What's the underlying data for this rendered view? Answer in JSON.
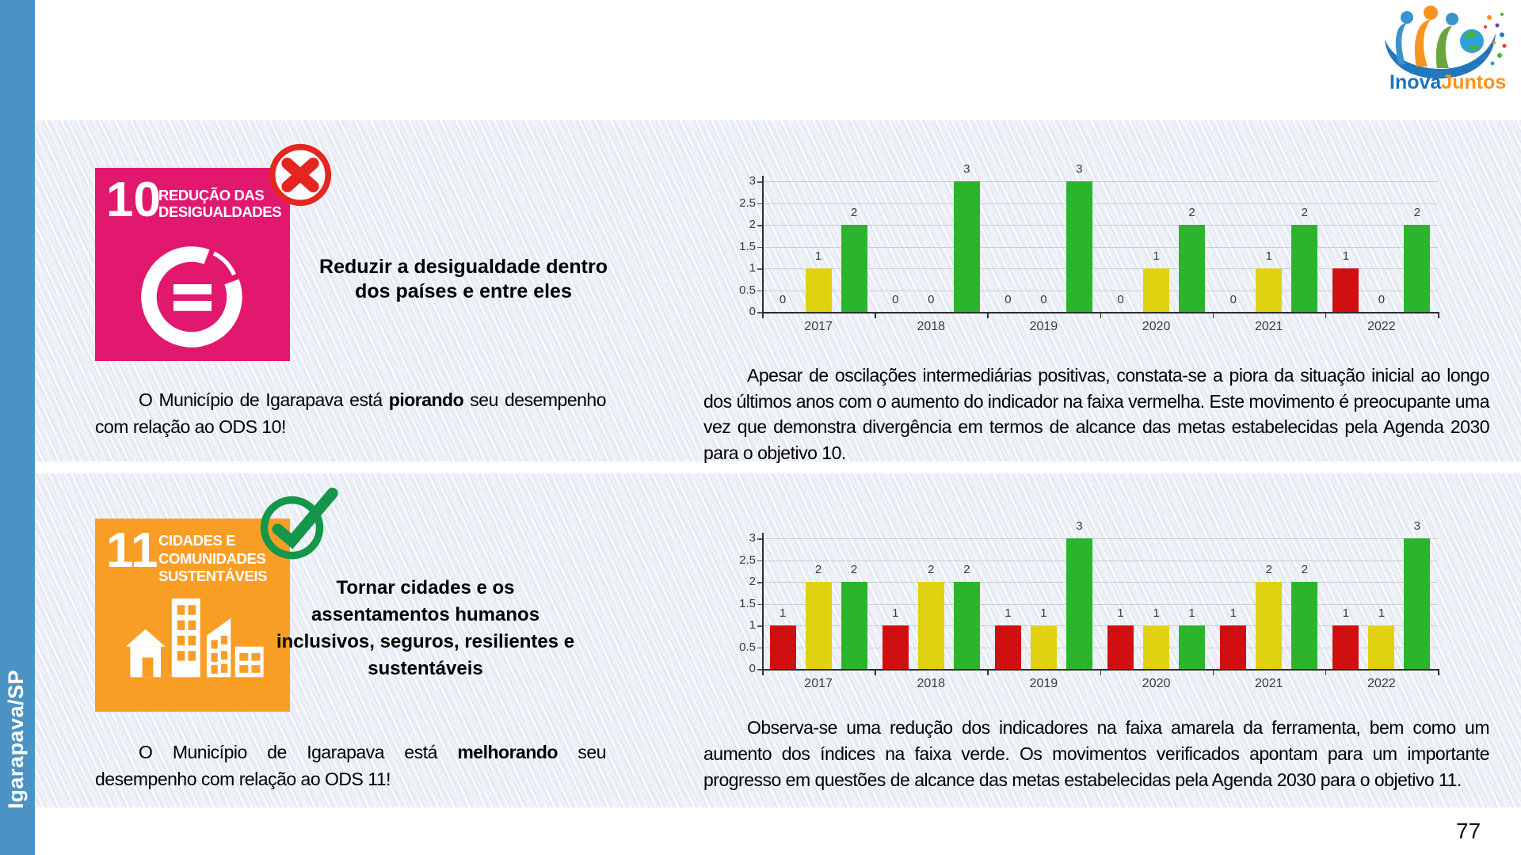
{
  "page": {
    "sidebar_label": "Igarapava/SP",
    "page_number": "77",
    "logo_text_primary": "Inova",
    "logo_text_secondary": "Juntos",
    "logo_primary_color": "#1C75BC",
    "logo_secondary_color": "#F7941E"
  },
  "sections": [
    {
      "goal_number": "10",
      "goal_title_lines": [
        "REDUÇÃO DAS",
        "DESIGUALDADES"
      ],
      "tile_color": "#E2186F",
      "status": "negative",
      "status_color": "#E52620",
      "objective": "Reduzir a desigualdade dentro dos países e entre eles",
      "summary_prefix": "O Município de Igarapava está ",
      "summary_bold": "piorando",
      "summary_suffix": " seu desempenho com relação ao ODS 10!",
      "analysis": "Apesar de oscilações intermediárias positivas, constata-se a piora da situação inicial ao longo dos últimos anos com o aumento do indicador na faixa vermelha. Este movimento é preocupante uma vez que demonstra divergência em termos de alcance das metas estabelecidas pela Agenda 2030 para o objetivo 10."
    },
    {
      "goal_number": "11",
      "goal_title_lines": [
        "CIDADES E",
        "COMUNIDADES",
        "SUSTENTÁVEIS"
      ],
      "tile_color": "#F99E25",
      "status": "positive",
      "status_color": "#15964B",
      "objective": "Tornar cidades e os assentamentos humanos inclusivos, seguros, resilientes e sustentáveis",
      "summary_prefix": "O Município de Igarapava está ",
      "summary_bold": "melhorando",
      "summary_suffix": " seu desempenho com relação ao ODS 11!",
      "analysis": "Observa-se uma redução dos indicadores na faixa amarela da ferramenta, bem como um aumento dos índices na faixa verde. Os movimentos verificados apontam para um importante progresso em questões de alcance das metas estabelecidas pela Agenda 2030 para o objetivo 11."
    }
  ],
  "chart_data": [
    {
      "type": "bar",
      "categories": [
        "2017",
        "2018",
        "2019",
        "2020",
        "2021",
        "2022"
      ],
      "series": [
        {
          "name": "faixa vermelha",
          "color": "#D01010",
          "values": [
            0,
            0,
            0,
            0,
            0,
            1
          ]
        },
        {
          "name": "faixa amarela",
          "color": "#E0D211",
          "values": [
            1,
            0,
            0,
            1,
            1,
            0
          ]
        },
        {
          "name": "faixa verde",
          "color": "#2CB42C",
          "values": [
            2,
            3,
            3,
            2,
            2,
            2
          ]
        }
      ],
      "ylim": [
        0,
        3
      ],
      "yticks": [
        0,
        0.5,
        1,
        1.5,
        2,
        2.5,
        3
      ],
      "grid": true,
      "legend": "none",
      "value_labels": true
    },
    {
      "type": "bar",
      "categories": [
        "2017",
        "2018",
        "2019",
        "2020",
        "2021",
        "2022"
      ],
      "series": [
        {
          "name": "faixa vermelha",
          "color": "#D01010",
          "values": [
            1,
            1,
            1,
            1,
            1,
            1
          ]
        },
        {
          "name": "faixa amarela",
          "color": "#E0D211",
          "values": [
            2,
            2,
            1,
            1,
            2,
            1
          ]
        },
        {
          "name": "faixa verde",
          "color": "#2CB42C",
          "values": [
            2,
            2,
            3,
            1,
            2,
            3
          ]
        }
      ],
      "ylim": [
        0,
        3
      ],
      "yticks": [
        0,
        0.5,
        1,
        1.5,
        2,
        2.5,
        3
      ],
      "grid": true,
      "legend": "none",
      "value_labels": true
    }
  ]
}
